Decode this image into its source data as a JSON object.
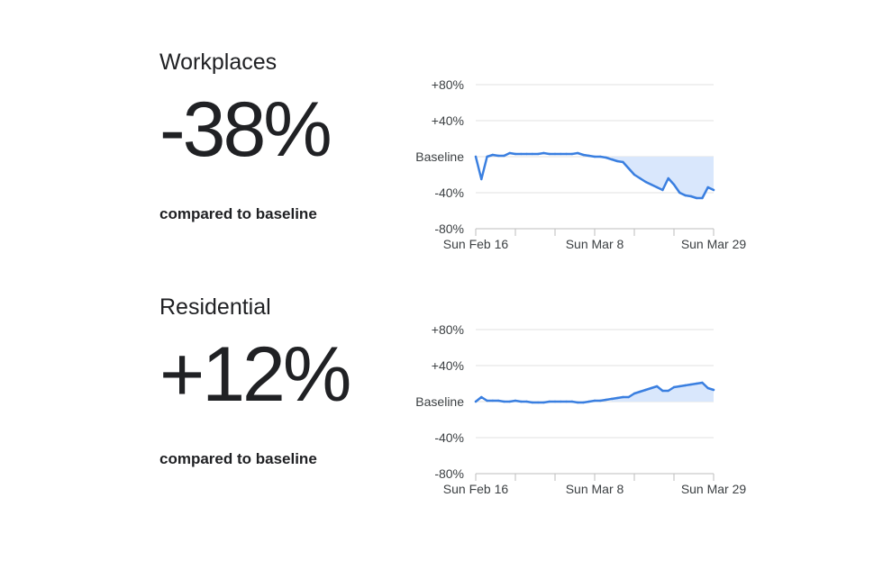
{
  "panels": [
    {
      "category": "Workplaces",
      "change": "-38%",
      "compared_label": "compared to baseline"
    },
    {
      "category": "Residential",
      "change": "+12%",
      "compared_label": "compared to baseline"
    }
  ],
  "colors": {
    "line": "#3a7fe0",
    "fill": "#d9e7fc",
    "grid": "#e0e0e0",
    "axis": "#bdbdbd",
    "text": "#202124"
  },
  "chart_data": [
    {
      "type": "area",
      "title": "",
      "ylim": [
        -80,
        80
      ],
      "y_ticks": [
        {
          "value": 80,
          "label": "+80%"
        },
        {
          "value": 40,
          "label": "+40%"
        },
        {
          "value": 0,
          "label": "Baseline"
        },
        {
          "value": -40,
          "label": "-40%"
        },
        {
          "value": -80,
          "label": "-80%"
        }
      ],
      "x_tick_labels": [
        {
          "index": 0,
          "label": "Sun Feb 16"
        },
        {
          "index": 21,
          "label": "Sun Mar 8"
        },
        {
          "index": 42,
          "label": "Sun Mar 29"
        }
      ],
      "x_tick_count": 7,
      "grid": true,
      "series": [
        {
          "values": [
            0,
            -25,
            0,
            2,
            1,
            1,
            4,
            3,
            3,
            3,
            3,
            3,
            4,
            3,
            3,
            3,
            3,
            3,
            4,
            2,
            1,
            0,
            0,
            -1,
            -3,
            -5,
            -6,
            -13,
            -20,
            -24,
            -28,
            -31,
            -34,
            -37,
            -24,
            -31,
            -40,
            -43,
            -44,
            -46,
            -46,
            -34,
            -37
          ]
        }
      ]
    },
    {
      "type": "area",
      "title": "",
      "ylim": [
        -80,
        80
      ],
      "y_ticks": [
        {
          "value": 80,
          "label": "+80%"
        },
        {
          "value": 40,
          "label": "+40%"
        },
        {
          "value": 0,
          "label": "Baseline"
        },
        {
          "value": -40,
          "label": "-40%"
        },
        {
          "value": -80,
          "label": "-80%"
        }
      ],
      "x_tick_labels": [
        {
          "index": 0,
          "label": "Sun Feb 16"
        },
        {
          "index": 21,
          "label": "Sun Mar 8"
        },
        {
          "index": 42,
          "label": "Sun Mar 29"
        }
      ],
      "x_tick_count": 7,
      "grid": true,
      "series": [
        {
          "values": [
            0,
            5,
            1,
            1,
            1,
            0,
            0,
            1,
            0,
            0,
            -1,
            -1,
            -1,
            0,
            0,
            0,
            0,
            0,
            -1,
            -1,
            0,
            1,
            1,
            2,
            3,
            4,
            5,
            5,
            9,
            11,
            13,
            15,
            17,
            12,
            12,
            16,
            17,
            18,
            19,
            20,
            21,
            15,
            13
          ]
        }
      ]
    }
  ]
}
